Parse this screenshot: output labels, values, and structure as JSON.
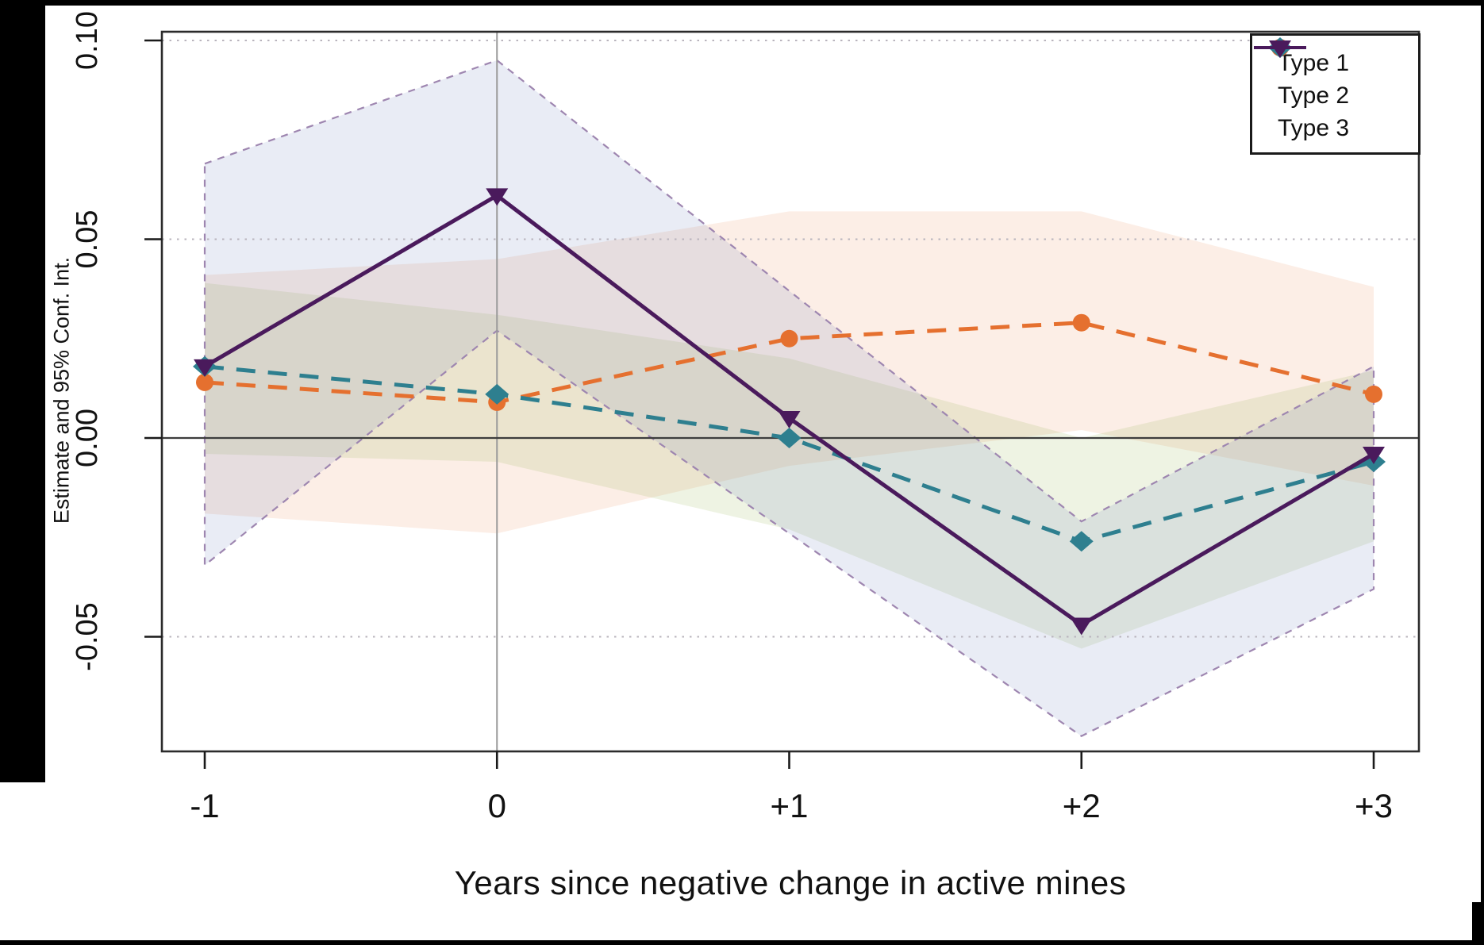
{
  "figure": {
    "background_color": "#000000",
    "canvas_color": "#ffffff"
  },
  "chart_data": {
    "type": "line",
    "title": "",
    "xlabel": "Years since negative change in active mines",
    "ylabel": "Estimate and 95% Conf. Int.",
    "categories": [
      "-1",
      "0",
      "+1",
      "+2",
      "+3"
    ],
    "x_values": [
      -1,
      0,
      1,
      2,
      3
    ],
    "ylim": [
      -0.079,
      0.102
    ],
    "yticks": [
      0.1,
      0.05,
      0.0,
      -0.05
    ],
    "ytick_labels": [
      "0.10",
      "0.05",
      "0.00",
      "-0.05"
    ],
    "grid": {
      "horizontal_dotted_at": [
        0.1,
        0.05,
        -0.05
      ],
      "zero_line": true,
      "vertical_solid_at_x": "0"
    },
    "legend_position": "top-right",
    "legend_labels": [
      "Type 1",
      "Type 2",
      "Type 3"
    ],
    "series": [
      {
        "name": "Type 1",
        "color": "#E5702F",
        "line_style": "dashed",
        "marker": "circle",
        "values": [
          0.014,
          0.009,
          0.025,
          0.029,
          0.011
        ],
        "ci_lower": [
          -0.019,
          -0.024,
          -0.007,
          0.002,
          -0.012
        ],
        "ci_upper": [
          0.041,
          0.045,
          0.057,
          0.057,
          0.038
        ],
        "ci_fill": "rgba(232,115,50,0.12)",
        "ci_border": ""
      },
      {
        "name": "Type 2",
        "color": "#2E7F8F",
        "line_style": "dashed",
        "marker": "diamond",
        "values": [
          0.018,
          0.011,
          0.0,
          -0.026,
          -0.006
        ],
        "ci_lower": [
          -0.004,
          -0.006,
          -0.023,
          -0.053,
          -0.026
        ],
        "ci_upper": [
          0.039,
          0.031,
          0.02,
          0.0,
          0.017
        ],
        "ci_fill": "rgba(150,180,80,0.16)",
        "ci_border": ""
      },
      {
        "name": "Type 3",
        "color": "#4A1A5C",
        "line_style": "solid",
        "marker": "triangle-down",
        "values": [
          0.018,
          0.061,
          0.005,
          -0.047,
          -0.004
        ],
        "ci_lower": [
          -0.032,
          0.027,
          -0.024,
          -0.075,
          -0.038
        ],
        "ci_upper": [
          0.069,
          0.095,
          0.037,
          -0.021,
          0.018
        ],
        "ci_fill": "rgba(110,130,185,0.15)",
        "ci_border": "#9E86B0"
      }
    ],
    "axis_colors": {
      "plot_border": "#2b2b2b",
      "zero_line": "#3d3d3d",
      "grid_dotted": "#b9b4bd",
      "vertical_line": "#9a9a9a",
      "tick_text": "#111111"
    }
  }
}
